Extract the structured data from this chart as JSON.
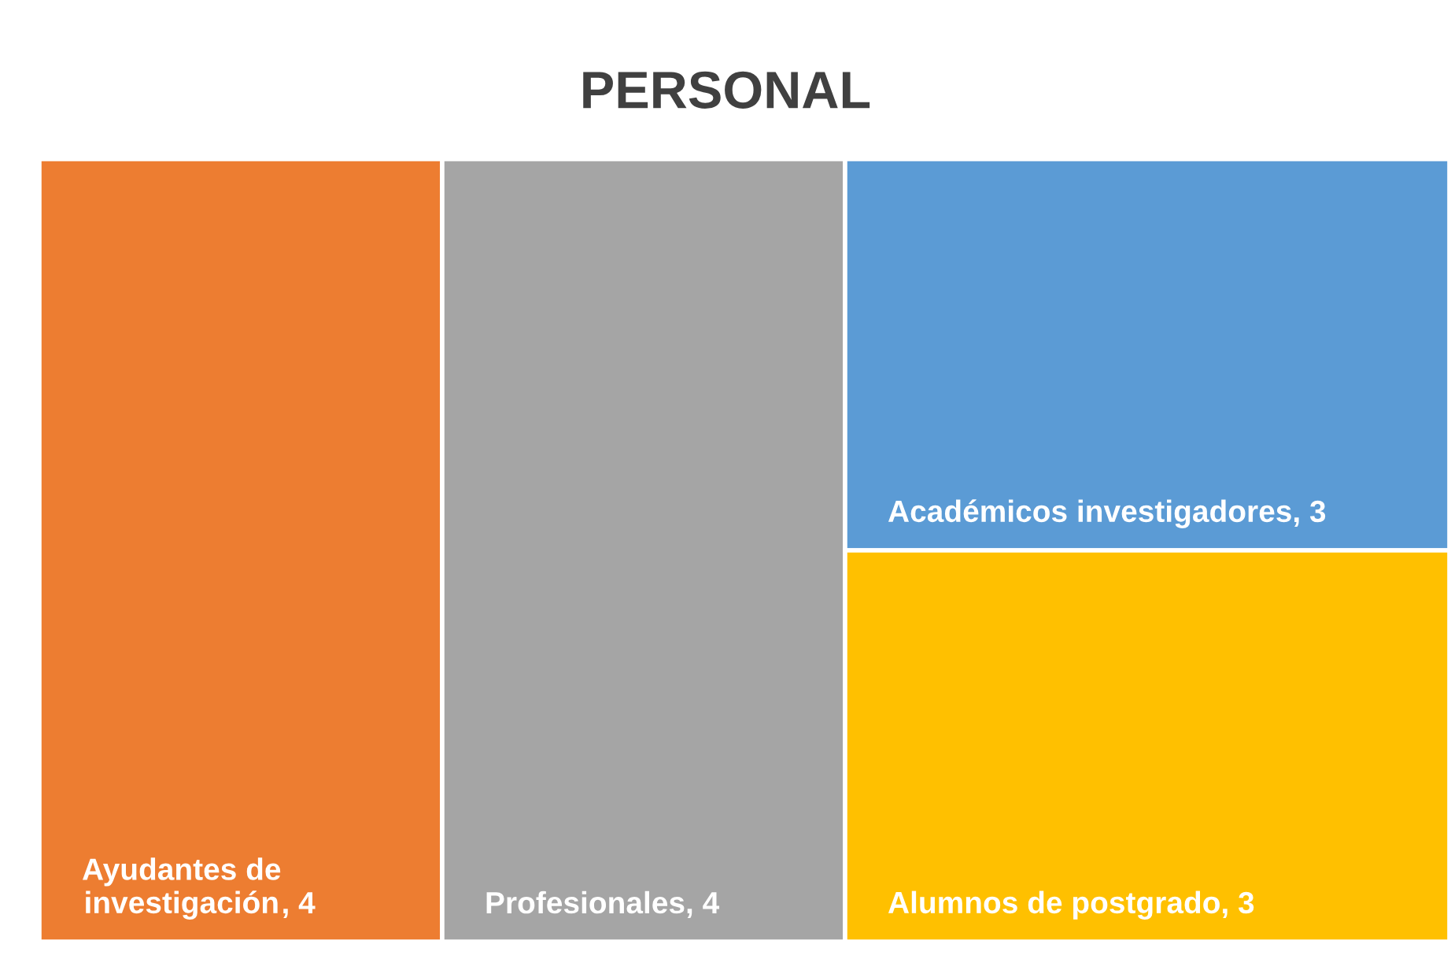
{
  "chart_data": {
    "type": "other",
    "title": "PERSONAL",
    "categories": [
      "Ayudantes de investigación",
      "Profesionales",
      "Académicos investigadores",
      "Alumnos de postgrado"
    ],
    "values": [
      4,
      4,
      3,
      3
    ],
    "colors": [
      "#ed7d31",
      "#a5a5a5",
      "#5b9bd5",
      "#ffc000"
    ],
    "value_labels": [
      ", 4",
      ", 4",
      ", 3",
      ", 3"
    ]
  }
}
